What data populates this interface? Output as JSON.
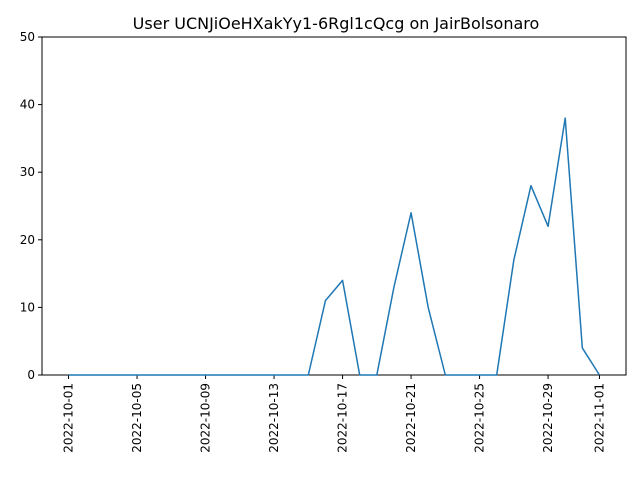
{
  "chart_data": {
    "type": "line",
    "title": "User UCNJiOeHXakYy1-6Rgl1cQcg on JairBolsonaro",
    "xlabel": "",
    "ylabel": "",
    "x": [
      "2022-10-01",
      "2022-10-02",
      "2022-10-03",
      "2022-10-04",
      "2022-10-05",
      "2022-10-06",
      "2022-10-07",
      "2022-10-08",
      "2022-10-09",
      "2022-10-10",
      "2022-10-11",
      "2022-10-12",
      "2022-10-13",
      "2022-10-14",
      "2022-10-15",
      "2022-10-16",
      "2022-10-17",
      "2022-10-18",
      "2022-10-19",
      "2022-10-20",
      "2022-10-21",
      "2022-10-22",
      "2022-10-23",
      "2022-10-24",
      "2022-10-25",
      "2022-10-26",
      "2022-10-27",
      "2022-10-28",
      "2022-10-29",
      "2022-10-30",
      "2022-10-31",
      "2022-11-01"
    ],
    "series": [
      {
        "values": [
          0,
          0,
          0,
          0,
          0,
          0,
          0,
          0,
          0,
          0,
          0,
          0,
          0,
          0,
          0,
          11,
          14,
          0,
          0,
          13,
          24,
          10,
          0,
          0,
          0,
          0,
          17,
          28,
          22,
          38,
          4,
          0
        ]
      }
    ],
    "x_ticks": [
      "2022-10-01",
      "2022-10-05",
      "2022-10-09",
      "2022-10-13",
      "2022-10-17",
      "2022-10-21",
      "2022-10-25",
      "2022-10-29",
      "2022-11-01"
    ],
    "y_ticks": [
      0,
      10,
      20,
      30,
      40,
      50
    ],
    "ylim": [
      0,
      50
    ],
    "grid": false,
    "line_color": "#1f77b4"
  }
}
